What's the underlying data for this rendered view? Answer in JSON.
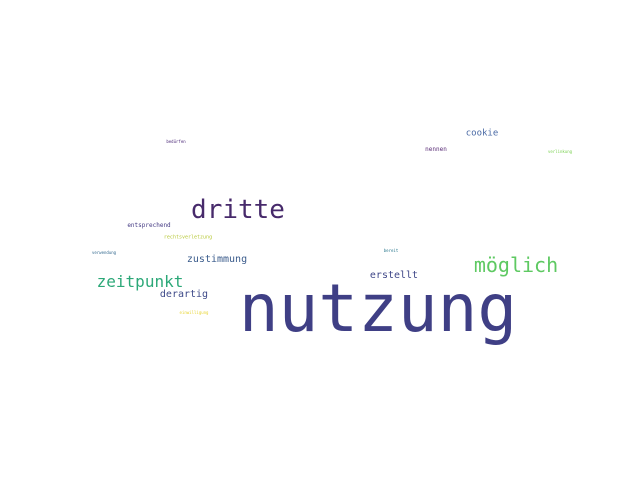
{
  "words": [
    {
      "text": "nutzung",
      "color": "#3f3f85"
    },
    {
      "text": "dritte",
      "color": "#472a6b"
    },
    {
      "text": "möglich",
      "color": "#5ec962"
    },
    {
      "text": "zeitpunkt",
      "color": "#2ca878"
    },
    {
      "text": "zustimmung",
      "color": "#3b5c8c"
    },
    {
      "text": "derartig",
      "color": "#3e4a89"
    },
    {
      "text": "erstellt",
      "color": "#3f4788"
    },
    {
      "text": "cookie",
      "color": "#4a6aa5"
    },
    {
      "text": "nennen",
      "color": "#5a2d77"
    },
    {
      "text": "entsprechend",
      "color": "#443a83"
    },
    {
      "text": "rechtsverletzung",
      "color": "#b8c93a"
    },
    {
      "text": "verwendung",
      "color": "#31688e"
    },
    {
      "text": "bedürfen",
      "color": "#482475"
    },
    {
      "text": "verlinkung",
      "color": "#7ad151"
    },
    {
      "text": "bereit",
      "color": "#2a788e"
    },
    {
      "text": "einwilligung",
      "color": "#e8d534"
    }
  ]
}
